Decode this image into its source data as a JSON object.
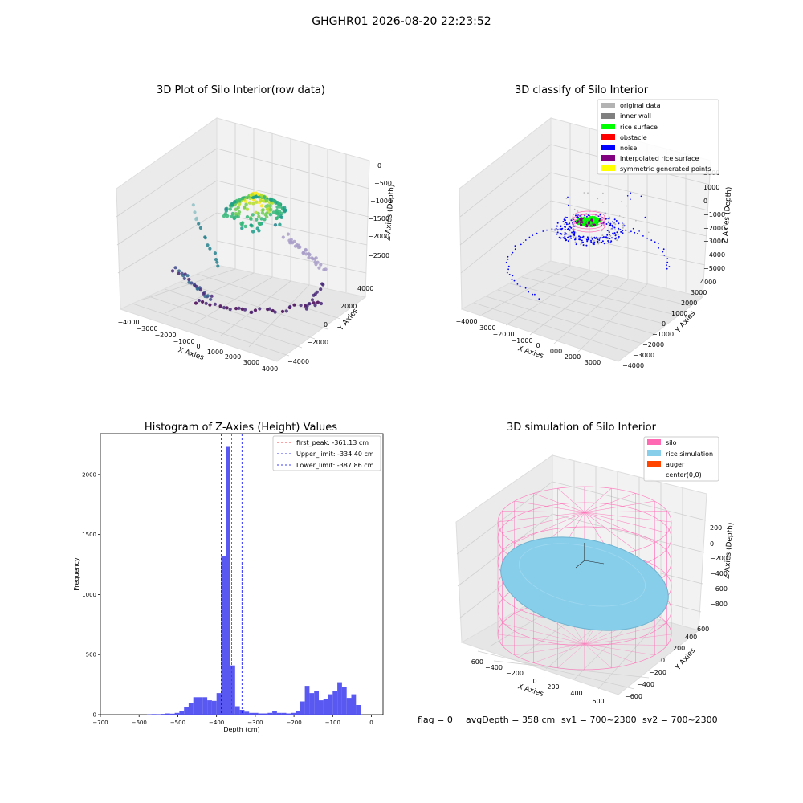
{
  "figure": {
    "suptitle": "GHGHR01 2026-08-20 22:23:52",
    "footer": {
      "flag": "flag = 0",
      "avg_depth": "avgDepth = 358 cm",
      "sv1": "sv1 = 700~2300",
      "sv2": "sv2 = 700~2300"
    }
  },
  "colors": {
    "original_data": "#b3b3b3",
    "inner_wall": "#808080",
    "rice_surface": "#00ff00",
    "obstacle": "#ff0000",
    "noise": "#0000ff",
    "interpolated_rice_surface": "#800080",
    "symmetric_generated_points": "#ffff00",
    "histogram_bars": "#5050f0",
    "silo": "#ff69b4",
    "rice_simulation": "#87ceeb",
    "auger": "#ff4500"
  },
  "chart_data": [
    {
      "type": "scatter",
      "title": "3D Plot of Silo Interior(row data)",
      "xlabel": "X Axies",
      "ylabel": "Y Axies",
      "zlabel": "Z Axies (Depth)",
      "x_ticks": [
        "−4000",
        "−3000",
        "−2000",
        "−1000",
        "0",
        "1000",
        "2000",
        "3000",
        "4000"
      ],
      "y_ticks": [
        "−4000",
        "−2000",
        "0",
        "2000",
        "4000"
      ],
      "z_ticks": [
        "0",
        "−500",
        "−1000",
        "−1500",
        "−2000",
        "−2500"
      ],
      "xlim": [
        -4000,
        4000
      ],
      "ylim": [
        -4000,
        4000
      ],
      "zlim": [
        -2700,
        0
      ],
      "colormap": "viridis"
    },
    {
      "type": "scatter",
      "title": "3D classify of Silo Interior",
      "xlabel": "X Axies",
      "ylabel": "Y Axies",
      "zlabel": "Z Axies (Depth)",
      "x_ticks": [
        "−4000",
        "−3000",
        "−2000",
        "−1000",
        "0",
        "1000",
        "2000",
        "3000"
      ],
      "y_ticks": [
        "−4000",
        "−3000",
        "−2000",
        "−1000",
        "0",
        "1000",
        "2000",
        "3000",
        "4000"
      ],
      "z_ticks": [
        "2000",
        "1000",
        "0",
        "−1000",
        "−2000",
        "−3000",
        "−4000",
        "−5000"
      ],
      "legend": [
        "original data",
        "inner wall",
        "rice surface",
        "obstacle",
        "noise",
        "interpolated rice surface",
        "symmetric generated points"
      ],
      "legend_position": "top-right"
    },
    {
      "type": "bar",
      "title": "Histogram of Z-Axies (Height) Values",
      "xlabel": "Depth (cm)",
      "ylabel": "Frequency",
      "x_ticks": [
        "−700",
        "−600",
        "−500",
        "−400",
        "−300",
        "−200",
        "−100",
        "0"
      ],
      "y_ticks": [
        "0",
        "500",
        "1000",
        "1500",
        "2000"
      ],
      "xlim": [
        -700,
        30
      ],
      "ylim": [
        0,
        2340
      ],
      "bin_width": 12,
      "bin_starts": [
        -580,
        -568,
        -556,
        -544,
        -532,
        -520,
        -508,
        -496,
        -484,
        -472,
        -460,
        -448,
        -436,
        -424,
        -412,
        -400,
        -388,
        -376,
        -364,
        -352,
        -340,
        -328,
        -316,
        -304,
        -292,
        -280,
        -268,
        -256,
        -244,
        -232,
        -220,
        -208,
        -196,
        -184,
        -172,
        -160,
        -148,
        -136,
        -124,
        -112,
        -100,
        -88,
        -76,
        -64,
        -52,
        -40,
        -28,
        -16,
        -4
      ],
      "values": [
        3,
        5,
        4,
        6,
        10,
        8,
        15,
        30,
        60,
        100,
        145,
        145,
        145,
        120,
        115,
        180,
        1320,
        2230,
        410,
        70,
        40,
        25,
        15,
        15,
        10,
        10,
        15,
        30,
        15,
        15,
        10,
        15,
        30,
        110,
        240,
        180,
        200,
        120,
        130,
        170,
        200,
        270,
        230,
        140,
        170,
        80,
        0,
        0,
        0
      ],
      "legend": [
        {
          "label": "first_peak: -361.13 cm",
          "value": -361.13,
          "color": "#ff0000"
        },
        {
          "label": "Upper_limit: -334.40 cm",
          "value": -334.4,
          "color": "#0000ff"
        },
        {
          "label": "Lower_limit: -387.86 cm",
          "value": -387.86,
          "color": "#0000ff"
        }
      ],
      "legend_position": "top-right"
    },
    {
      "type": "scatter",
      "title": "3D simulation of Silo Interior",
      "xlabel": "X Axies",
      "ylabel": "Y Axies",
      "zlabel": "Z Axies (Depth)",
      "x_ticks": [
        "−600",
        "−400",
        "−200",
        "0",
        "200",
        "400",
        "600"
      ],
      "y_ticks": [
        "−600",
        "−400",
        "−200",
        "0",
        "200",
        "400",
        "600"
      ],
      "z_ticks": [
        "200",
        "0",
        "−200",
        "−400",
        "−600",
        "−800"
      ],
      "legend": [
        "silo",
        "rice simulation",
        "auger",
        "center(0,0)"
      ],
      "legend_position": "top-right"
    }
  ]
}
